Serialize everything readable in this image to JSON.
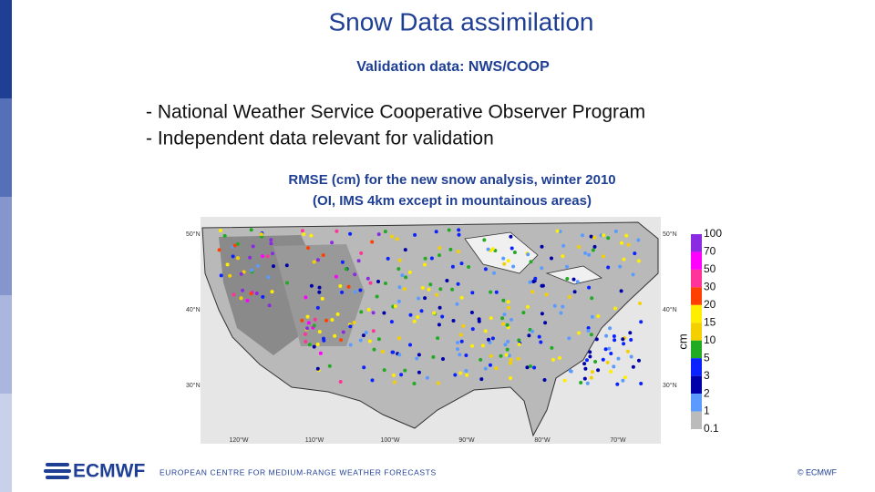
{
  "header": {
    "title": "Snow Data assimilation",
    "subtitle": "Validation data: NWS/COOP"
  },
  "bullets": [
    "- National Weather Service Cooperative Observer Program",
    "- Independent data relevant for validation"
  ],
  "figure": {
    "caption": [
      "RMSE (cm) for the new snow analysis, winter 2010",
      "(OI, IMS 4km except in mountainous areas)"
    ],
    "lat_labels": [
      "50°N",
      "40°N",
      "30°N"
    ],
    "lon_labels": [
      "120°W",
      "110°W",
      "100°W",
      "90°W",
      "80°W",
      "70°W"
    ],
    "colorbar": {
      "unit": "cm",
      "labels": [
        "100",
        "70",
        "50",
        "30",
        "20",
        "15",
        "10",
        "5",
        "3",
        "2",
        "1",
        "0.1"
      ],
      "colors": [
        "#8a2be2",
        "#ff00ff",
        "#ff3399",
        "#ff4000",
        "#ffee00",
        "#f5d000",
        "#22aa22",
        "#0a22ff",
        "#0000aa",
        "#5b9bff",
        "#bbbbbb"
      ]
    }
  },
  "footer": {
    "logo": "ECMWF",
    "organisation": "EUROPEAN CENTRE FOR MEDIUM-RANGE WEATHER FORECASTS",
    "copyright": "© ECMWF"
  }
}
